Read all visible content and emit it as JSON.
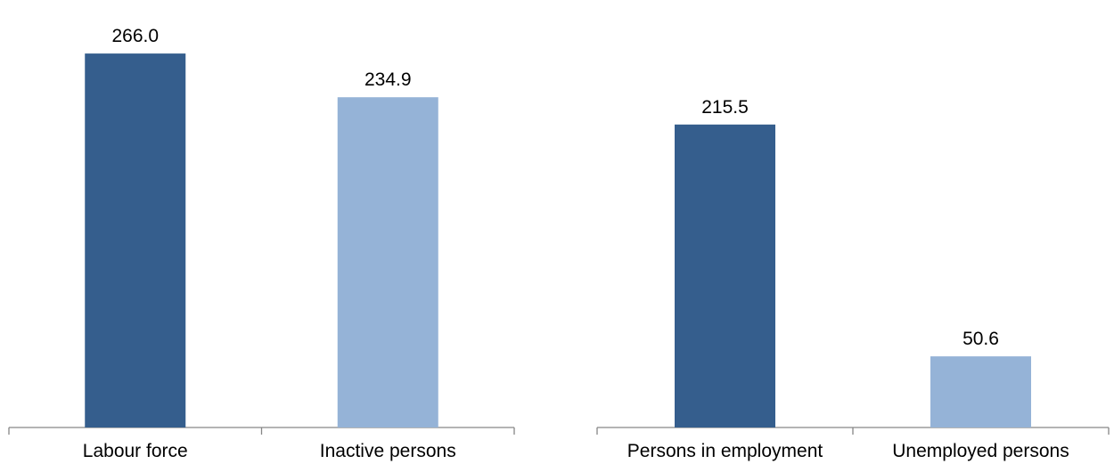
{
  "chart_data": [
    {
      "type": "bar",
      "categories": [
        "Labour force",
        "Inactive persons"
      ],
      "values": [
        266.0,
        234.9
      ],
      "value_labels": [
        "266.0",
        "234.9"
      ],
      "colors": [
        "#355E8D",
        "#95B3D7"
      ],
      "title": "",
      "xlabel": "",
      "ylabel": "",
      "ylim": [
        0,
        280
      ],
      "grid": false,
      "legend": "none"
    },
    {
      "type": "bar",
      "categories": [
        "Persons in employment",
        "Unemployed persons"
      ],
      "values": [
        215.5,
        50.6
      ],
      "value_labels": [
        "215.5",
        "50.6"
      ],
      "colors": [
        "#355E8D",
        "#95B3D7"
      ],
      "title": "",
      "xlabel": "",
      "ylabel": "",
      "ylim": [
        0,
        280
      ],
      "grid": false,
      "legend": "none"
    }
  ]
}
